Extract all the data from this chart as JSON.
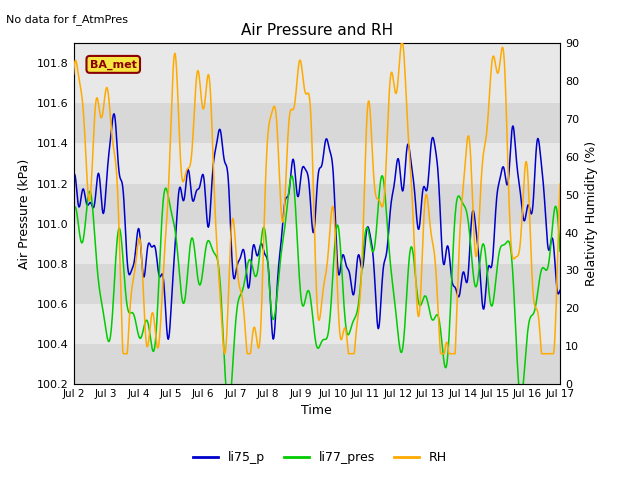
{
  "title": "Air Pressure and RH",
  "top_left_text": "No data for f_AtmPres",
  "box_label": "BA_met",
  "xlabel": "Time",
  "ylabel_left": "Air Pressure (kPa)",
  "ylabel_right": "Relativity Humidity (%)",
  "xlim": [
    0,
    15
  ],
  "ylim_left": [
    100.2,
    101.9
  ],
  "ylim_right": [
    0,
    90
  ],
  "yticks_left": [
    100.2,
    100.4,
    100.6,
    100.8,
    101.0,
    101.2,
    101.4,
    101.6,
    101.8
  ],
  "yticks_right": [
    0,
    10,
    20,
    30,
    40,
    50,
    60,
    70,
    80,
    90
  ],
  "xtick_labels": [
    "Jul 2",
    "Jul 3",
    "Jul 4",
    "Jul 5",
    "Jul 6",
    "Jul 7",
    "Jul 8",
    "Jul 9",
    "Jul 10",
    "Jul 11",
    "Jul 12",
    "Jul 13",
    "Jul 14",
    "Jul 15",
    "Jul 16",
    "Jul 17"
  ],
  "color_blue": "#0000cc",
  "color_green": "#00cc00",
  "color_orange": "#ffaa00",
  "fig_bg_color": "#ffffff",
  "band_dark": "#d8d8d8",
  "band_light": "#e8e8e8",
  "legend_entries": [
    "li75_p",
    "li77_pres",
    "RH"
  ],
  "blue_seed": 10,
  "green_seed": 20,
  "rh_seed": 30
}
